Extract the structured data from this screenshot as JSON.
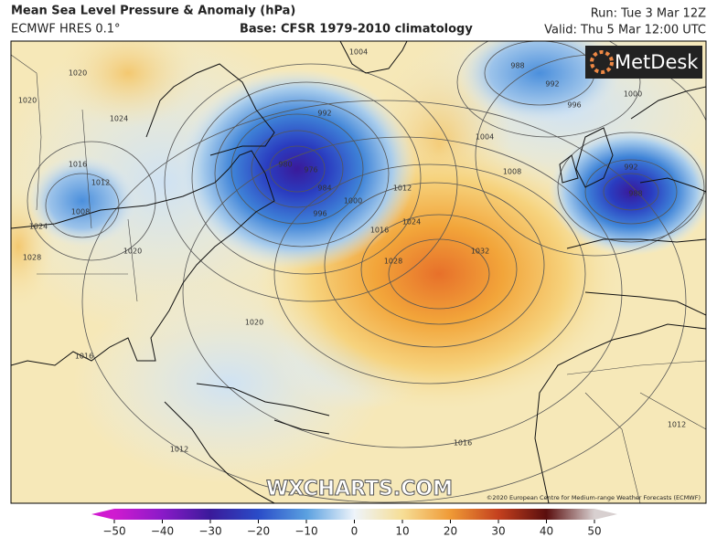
{
  "header": {
    "title": "Mean Sea Level Pressure & Anomaly (hPa)",
    "model": "ECMWF HRES 0.1°",
    "base": "Base: CFSR 1979-2010 climatology",
    "run": "Run: Tue 3 Mar 12Z",
    "valid": "Valid: Thu 5 Mar 12:00 UTC"
  },
  "map": {
    "logo": "MetDesk",
    "watermark": "WXCHARTS.COM",
    "credit": "©2020 European Centre for Medium-range Weather Forecasts (ECMWF)",
    "isobar_labels": [
      "1020",
      "1024",
      "1016",
      "1012",
      "1008",
      "1024",
      "1028",
      "1020",
      "992",
      "980",
      "976",
      "984",
      "996",
      "1000",
      "1004",
      "1008",
      "1012",
      "1016",
      "1024",
      "1028",
      "1032",
      "1020",
      "1016",
      "1012",
      "1016",
      "1012",
      "1004",
      "988",
      "992",
      "996",
      "1000",
      "992",
      "988",
      "1020"
    ]
  },
  "colorbar": {
    "ticks": [
      {
        "value": -50,
        "label": "−50"
      },
      {
        "value": -40,
        "label": "−40"
      },
      {
        "value": -30,
        "label": "−30"
      },
      {
        "value": -20,
        "label": "−20"
      },
      {
        "value": -10,
        "label": "−10"
      },
      0,
      10,
      20,
      30,
      40,
      50
    ]
  }
}
